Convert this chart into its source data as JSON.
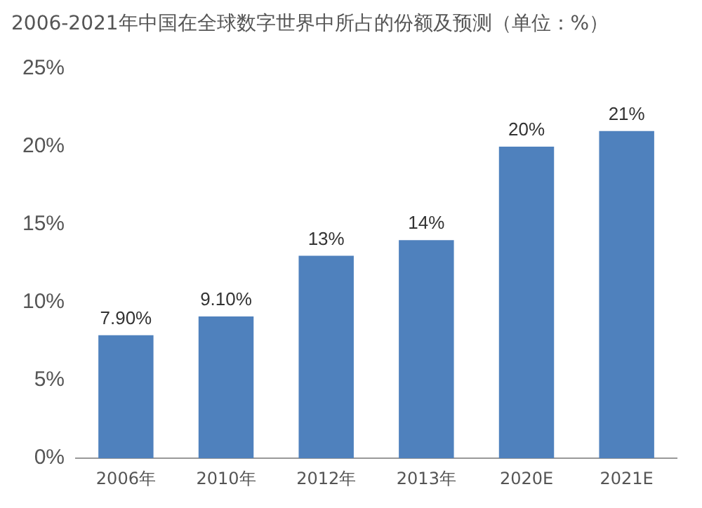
{
  "chart_data": {
    "type": "bar",
    "title": "2006-2021年中国在全球数字世界中所占的份额及预测（单位：%）",
    "categories": [
      "2006年",
      "2010年",
      "2012年",
      "2013年",
      "2020E",
      "2021E"
    ],
    "values": [
      7.9,
      9.1,
      13,
      14,
      20,
      21
    ],
    "value_labels": [
      "7.90%",
      "9.10%",
      "13%",
      "14%",
      "20%",
      "21%"
    ],
    "color": "#4f81bd",
    "ylim": [
      0,
      25
    ],
    "yticks": [
      {
        "value": 0,
        "label": "0%"
      },
      {
        "value": 5,
        "label": "5%"
      },
      {
        "value": 10,
        "label": "10%"
      },
      {
        "value": 15,
        "label": "15%"
      },
      {
        "value": 20,
        "label": "20%"
      },
      {
        "value": 25,
        "label": "25%"
      }
    ],
    "grid": false,
    "legend": false
  }
}
